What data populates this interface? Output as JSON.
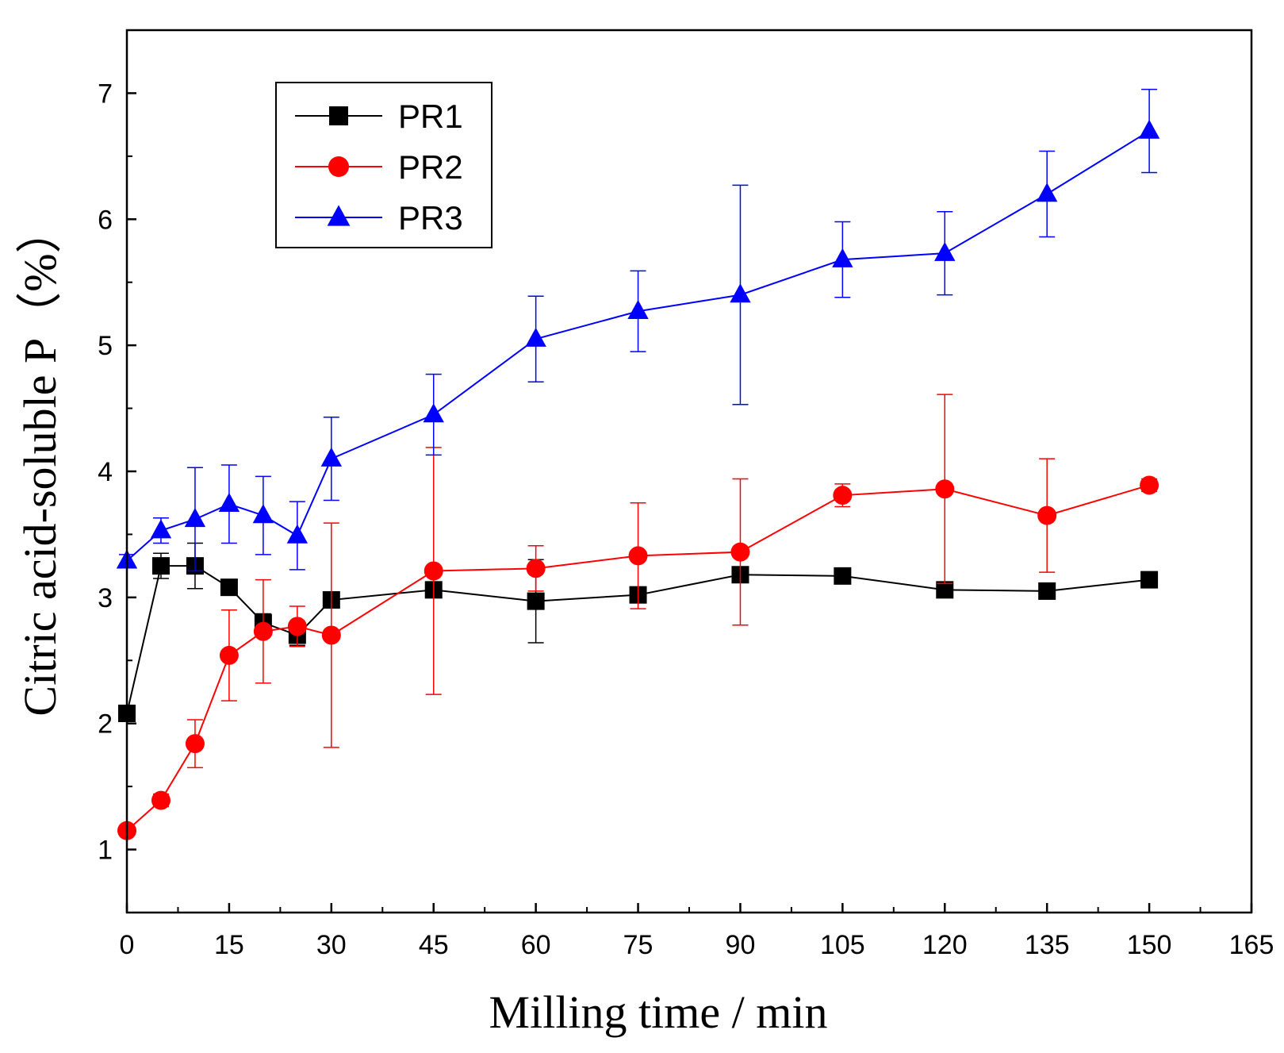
{
  "chart_data": {
    "type": "line",
    "title": "",
    "xlabel": "Milling time / min",
    "ylabel": "Citric  acid-soluble P（%）",
    "xlim": [
      0,
      165
    ],
    "ylim": [
      0.5,
      7.5
    ],
    "xticks": [
      0,
      15,
      30,
      45,
      60,
      75,
      90,
      105,
      120,
      135,
      150,
      165
    ],
    "yticks": [
      1,
      2,
      3,
      4,
      5,
      6,
      7
    ],
    "x": [
      0,
      5,
      10,
      15,
      20,
      25,
      30,
      45,
      60,
      75,
      90,
      105,
      120,
      135,
      150
    ],
    "legend_position": "top-left",
    "series": [
      {
        "name": "PR1",
        "color": "#000000",
        "marker": "square",
        "values": [
          2.08,
          3.25,
          3.25,
          3.08,
          2.8,
          2.7,
          2.98,
          3.06,
          2.97,
          3.02,
          3.18,
          3.17,
          3.06,
          3.05,
          3.14
        ],
        "errors": [
          0.0,
          0.1,
          0.18,
          0.05,
          0.07,
          0.08,
          0.06,
          0.05,
          0.33,
          0.05,
          0.06,
          0.05,
          0.04,
          0.03,
          0.05
        ]
      },
      {
        "name": "PR2",
        "color": "#ff0000",
        "marker": "circle",
        "values": [
          1.15,
          1.39,
          1.84,
          2.54,
          2.73,
          2.77,
          2.7,
          3.21,
          3.23,
          3.33,
          3.36,
          3.81,
          3.86,
          3.65,
          3.89
        ],
        "errors": [
          0.0,
          0.05,
          0.19,
          0.36,
          0.41,
          0.16,
          0.89,
          0.98,
          0.18,
          0.42,
          0.58,
          0.09,
          0.75,
          0.45,
          0.05
        ]
      },
      {
        "name": "PR3",
        "color": "#0000ff",
        "marker": "triangle",
        "values": [
          3.29,
          3.53,
          3.62,
          3.74,
          3.65,
          3.49,
          4.1,
          4.45,
          5.05,
          5.27,
          5.4,
          5.68,
          5.73,
          6.2,
          6.7
        ],
        "errors": [
          0.05,
          0.1,
          0.41,
          0.31,
          0.31,
          0.27,
          0.33,
          0.32,
          0.34,
          0.32,
          0.87,
          0.3,
          0.33,
          0.34,
          0.33
        ]
      }
    ]
  }
}
